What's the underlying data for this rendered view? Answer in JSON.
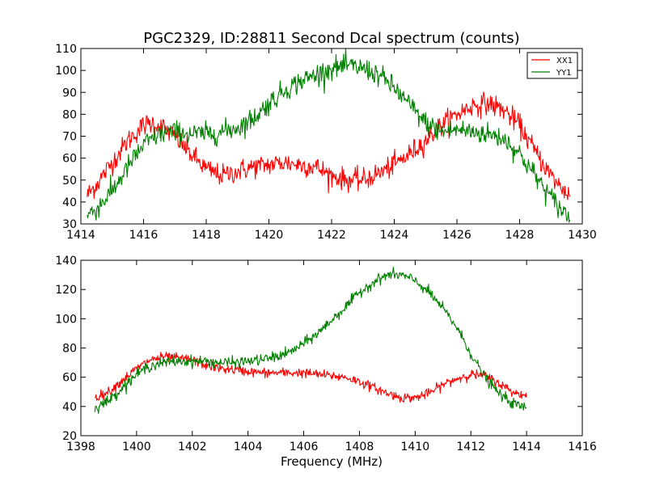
{
  "chart_data": [
    {
      "type": "line",
      "title": "PGC2329, ID:28811 Second Dcal spectrum (counts)",
      "xlabel": "",
      "ylabel": "",
      "xlim": [
        1414,
        1430
      ],
      "ylim": [
        30,
        110
      ],
      "xticks": [
        "1414",
        "1416",
        "1418",
        "1420",
        "1422",
        "1424",
        "1426",
        "1428",
        "1430"
      ],
      "yticks": [
        "30",
        "40",
        "50",
        "60",
        "70",
        "80",
        "90",
        "100",
        "110"
      ],
      "legend": {
        "placement": "top-right",
        "entries": [
          "XX1",
          "YY1"
        ]
      },
      "grid": false,
      "series": [
        {
          "name": "XX1",
          "color": "#ff0000",
          "noise": 2.5,
          "x": [
            1414.2,
            1414.5,
            1415.0,
            1415.5,
            1416.0,
            1416.3,
            1416.6,
            1417.0,
            1417.5,
            1418.0,
            1418.5,
            1419.0,
            1419.5,
            1420.0,
            1420.5,
            1421.0,
            1421.5,
            1422.0,
            1422.5,
            1423.0,
            1423.5,
            1424.0,
            1424.5,
            1425.0,
            1425.5,
            1426.0,
            1426.5,
            1427.0,
            1427.5,
            1428.0,
            1428.5,
            1429.0,
            1429.3,
            1429.6
          ],
          "y": [
            43,
            48,
            58,
            68,
            75,
            76,
            74,
            70,
            62,
            55,
            52,
            54,
            56,
            57,
            58,
            57,
            56,
            52,
            50,
            50,
            53,
            57,
            62,
            68,
            75,
            80,
            84,
            85,
            82,
            75,
            63,
            52,
            47,
            43
          ]
        },
        {
          "name": "YY1",
          "color": "#008000",
          "noise": 2.5,
          "x": [
            1414.2,
            1414.5,
            1415.0,
            1415.5,
            1416.0,
            1416.5,
            1417.0,
            1417.5,
            1418.0,
            1418.5,
            1419.0,
            1419.5,
            1420.0,
            1420.5,
            1421.0,
            1421.5,
            1422.0,
            1422.5,
            1423.0,
            1423.5,
            1424.0,
            1424.5,
            1425.0,
            1425.5,
            1426.0,
            1426.5,
            1427.0,
            1427.5,
            1428.0,
            1428.5,
            1429.0,
            1429.3,
            1429.6
          ],
          "y": [
            34,
            37,
            45,
            56,
            66,
            71,
            72,
            71,
            71,
            72,
            74,
            78,
            85,
            91,
            95,
            98,
            101,
            102,
            101,
            98,
            92,
            84,
            76,
            72,
            73,
            72,
            71,
            69,
            62,
            52,
            42,
            37,
            33
          ]
        }
      ]
    },
    {
      "type": "line",
      "title": "",
      "xlabel": "Frequency (MHz)",
      "ylabel": "",
      "xlim": [
        1398,
        1416
      ],
      "ylim": [
        20,
        140
      ],
      "xticks": [
        "1398",
        "1400",
        "1402",
        "1404",
        "1406",
        "1408",
        "1410",
        "1412",
        "1414",
        "1416"
      ],
      "yticks": [
        "20",
        "40",
        "60",
        "80",
        "100",
        "120",
        "140"
      ],
      "grid": false,
      "series": [
        {
          "name": "XX1",
          "color": "#ff0000",
          "noise": 1.6,
          "x": [
            1398.5,
            1399.0,
            1399.5,
            1400.0,
            1400.5,
            1401.0,
            1401.5,
            1402.0,
            1402.5,
            1403.0,
            1403.5,
            1404.0,
            1404.5,
            1405.0,
            1405.5,
            1406.0,
            1406.5,
            1407.0,
            1407.5,
            1408.0,
            1408.5,
            1409.0,
            1409.5,
            1410.0,
            1410.5,
            1411.0,
            1411.5,
            1412.0,
            1412.5,
            1413.0,
            1413.5,
            1414.0
          ],
          "y": [
            46,
            50,
            58,
            66,
            72,
            74,
            73,
            72,
            68,
            66,
            65,
            64,
            63,
            63,
            63,
            63,
            62,
            61,
            60,
            57,
            53,
            49,
            46,
            46,
            49,
            55,
            59,
            62,
            61,
            56,
            50,
            47
          ]
        },
        {
          "name": "YY1",
          "color": "#008000",
          "noise": 1.8,
          "x": [
            1398.5,
            1399.0,
            1399.5,
            1400.0,
            1400.5,
            1401.0,
            1401.5,
            1402.0,
            1402.5,
            1403.0,
            1403.5,
            1404.0,
            1404.5,
            1405.0,
            1405.5,
            1406.0,
            1406.5,
            1407.0,
            1407.5,
            1408.0,
            1408.5,
            1409.0,
            1409.5,
            1410.0,
            1410.5,
            1411.0,
            1411.5,
            1412.0,
            1412.5,
            1413.0,
            1413.5,
            1414.0
          ],
          "y": [
            39,
            44,
            53,
            62,
            68,
            70,
            71,
            71,
            71,
            70,
            70,
            71,
            72,
            74,
            77,
            83,
            90,
            99,
            108,
            118,
            125,
            130,
            130,
            126,
            118,
            107,
            94,
            76,
            60,
            49,
            42,
            39
          ]
        }
      ]
    }
  ]
}
